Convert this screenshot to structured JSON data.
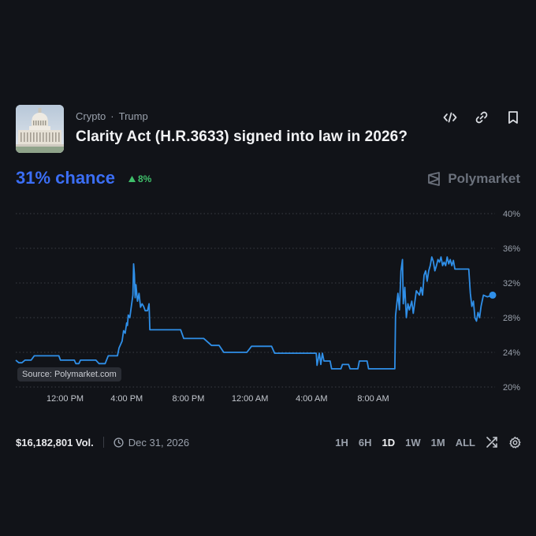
{
  "market": {
    "category": "Crypto",
    "subcategory": "Trump",
    "title": "Clarity Act (H.R.3633) signed into law in 2026?",
    "chance": "31% chance",
    "change": "8%",
    "brand": "Polymarket",
    "source_badge": "Source: Polymarket.com",
    "volume": "$16,182,801 Vol.",
    "end_date": "Dec 31, 2026"
  },
  "actions": [
    {
      "icon": "embed-icon"
    },
    {
      "icon": "link-icon"
    },
    {
      "icon": "bookmark-icon"
    }
  ],
  "ranges": [
    "1H",
    "6H",
    "1D",
    "1W",
    "1M",
    "ALL"
  ],
  "active_range": "1D",
  "colors": {
    "line": "#2f8fe8",
    "chance": "#3b6ef5",
    "positive": "#3fbf6a",
    "background": "#111318"
  },
  "chart_data": {
    "type": "line",
    "title": "",
    "xlabel": "",
    "ylabel": "",
    "ylim": [
      20,
      40
    ],
    "yticks": [
      "40%",
      "36%",
      "32%",
      "28%",
      "24%",
      "20%"
    ],
    "xticks": [
      "12:00 PM",
      "4:00 PM",
      "8:00 PM",
      "12:00 AM",
      "4:00 AM",
      "8:00 AM"
    ],
    "x_hours": [
      0,
      4,
      8,
      12,
      16,
      20
    ],
    "grid": true,
    "series": [
      {
        "name": "",
        "points": [
          [
            -3.2,
            23.1
          ],
          [
            -3.0,
            22.8
          ],
          [
            -2.8,
            22.8
          ],
          [
            -2.6,
            23.1
          ],
          [
            -2.2,
            23.1
          ],
          [
            -2.0,
            23.6
          ],
          [
            -1.3,
            23.6
          ],
          [
            -1.2,
            23.6
          ],
          [
            -0.8,
            23.6
          ],
          [
            -0.6,
            23.6
          ],
          [
            -0.4,
            23.6
          ],
          [
            -0.3,
            23.1
          ],
          [
            0.6,
            23.1
          ],
          [
            0.7,
            22.7
          ],
          [
            0.9,
            22.7
          ],
          [
            1.0,
            23.1
          ],
          [
            2.0,
            23.1
          ],
          [
            2.2,
            22.7
          ],
          [
            2.6,
            22.7
          ],
          [
            2.8,
            23.6
          ],
          [
            3.4,
            23.6
          ],
          [
            3.5,
            24.5
          ],
          [
            3.7,
            25.3
          ],
          [
            3.8,
            26.5
          ],
          [
            3.9,
            26.2
          ],
          [
            4.0,
            27.4
          ],
          [
            4.05,
            27.1
          ],
          [
            4.1,
            28.3
          ],
          [
            4.2,
            28.0
          ],
          [
            4.3,
            29.3
          ],
          [
            4.4,
            30.6
          ],
          [
            4.45,
            34.2
          ],
          [
            4.5,
            33.0
          ],
          [
            4.55,
            30.3
          ],
          [
            4.6,
            31.8
          ],
          [
            4.7,
            29.9
          ],
          [
            4.8,
            30.8
          ],
          [
            4.9,
            29.2
          ],
          [
            5.0,
            29.6
          ],
          [
            5.1,
            29.3
          ],
          [
            5.2,
            28.8
          ],
          [
            5.35,
            28.8
          ],
          [
            5.45,
            29.6
          ],
          [
            5.5,
            26.6
          ],
          [
            7.5,
            26.6
          ],
          [
            7.7,
            25.6
          ],
          [
            9.0,
            25.6
          ],
          [
            9.5,
            24.8
          ],
          [
            10.0,
            24.8
          ],
          [
            10.3,
            24.0
          ],
          [
            11.8,
            24.0
          ],
          [
            12.1,
            24.7
          ],
          [
            13.4,
            24.7
          ],
          [
            13.6,
            23.9
          ],
          [
            16.3,
            23.9
          ],
          [
            16.35,
            22.5
          ],
          [
            16.5,
            23.9
          ],
          [
            16.6,
            22.6
          ],
          [
            16.7,
            23.9
          ],
          [
            16.8,
            23.0
          ],
          [
            17.2,
            23.0
          ],
          [
            17.3,
            22.1
          ],
          [
            17.9,
            22.1
          ],
          [
            18.0,
            22.6
          ],
          [
            18.4,
            22.6
          ],
          [
            18.5,
            22.1
          ],
          [
            19.0,
            22.1
          ],
          [
            19.1,
            23.0
          ],
          [
            19.6,
            23.0
          ],
          [
            19.7,
            22.1
          ],
          [
            21.4,
            22.1
          ],
          [
            21.45,
            28.2
          ],
          [
            21.6,
            30.8
          ],
          [
            21.7,
            28.9
          ],
          [
            21.8,
            33.4
          ],
          [
            21.9,
            34.7
          ],
          [
            21.95,
            29.6
          ],
          [
            22.05,
            31.5
          ],
          [
            22.15,
            28.0
          ],
          [
            22.25,
            29.6
          ],
          [
            22.35,
            28.9
          ],
          [
            22.5,
            29.9
          ],
          [
            22.6,
            28.5
          ],
          [
            22.8,
            31.1
          ],
          [
            23.0,
            30.6
          ],
          [
            23.1,
            31.5
          ],
          [
            23.2,
            30.6
          ],
          [
            23.3,
            32.9
          ],
          [
            23.4,
            33.4
          ],
          [
            23.5,
            32.2
          ],
          [
            23.6,
            33.4
          ],
          [
            23.7,
            34.0
          ],
          [
            23.8,
            35.0
          ],
          [
            23.9,
            34.5
          ],
          [
            24.0,
            33.4
          ],
          [
            24.1,
            34.0
          ],
          [
            24.2,
            34.7
          ],
          [
            24.3,
            34.4
          ],
          [
            24.4,
            35.0
          ],
          [
            24.5,
            34.0
          ],
          [
            24.6,
            34.4
          ],
          [
            24.7,
            34.0
          ],
          [
            24.8,
            35.0
          ],
          [
            24.9,
            34.2
          ],
          [
            25.0,
            34.7
          ],
          [
            25.1,
            34.0
          ],
          [
            25.2,
            34.6
          ],
          [
            25.3,
            33.6
          ],
          [
            26.2,
            33.6
          ],
          [
            26.3,
            30.8
          ],
          [
            26.4,
            29.3
          ],
          [
            26.5,
            29.9
          ],
          [
            26.6,
            28.0
          ],
          [
            26.7,
            27.6
          ],
          [
            26.8,
            28.6
          ],
          [
            26.9,
            28.0
          ],
          [
            27.0,
            29.3
          ],
          [
            27.15,
            30.6
          ],
          [
            27.4,
            30.4
          ],
          [
            27.75,
            30.6
          ]
        ]
      }
    ]
  }
}
